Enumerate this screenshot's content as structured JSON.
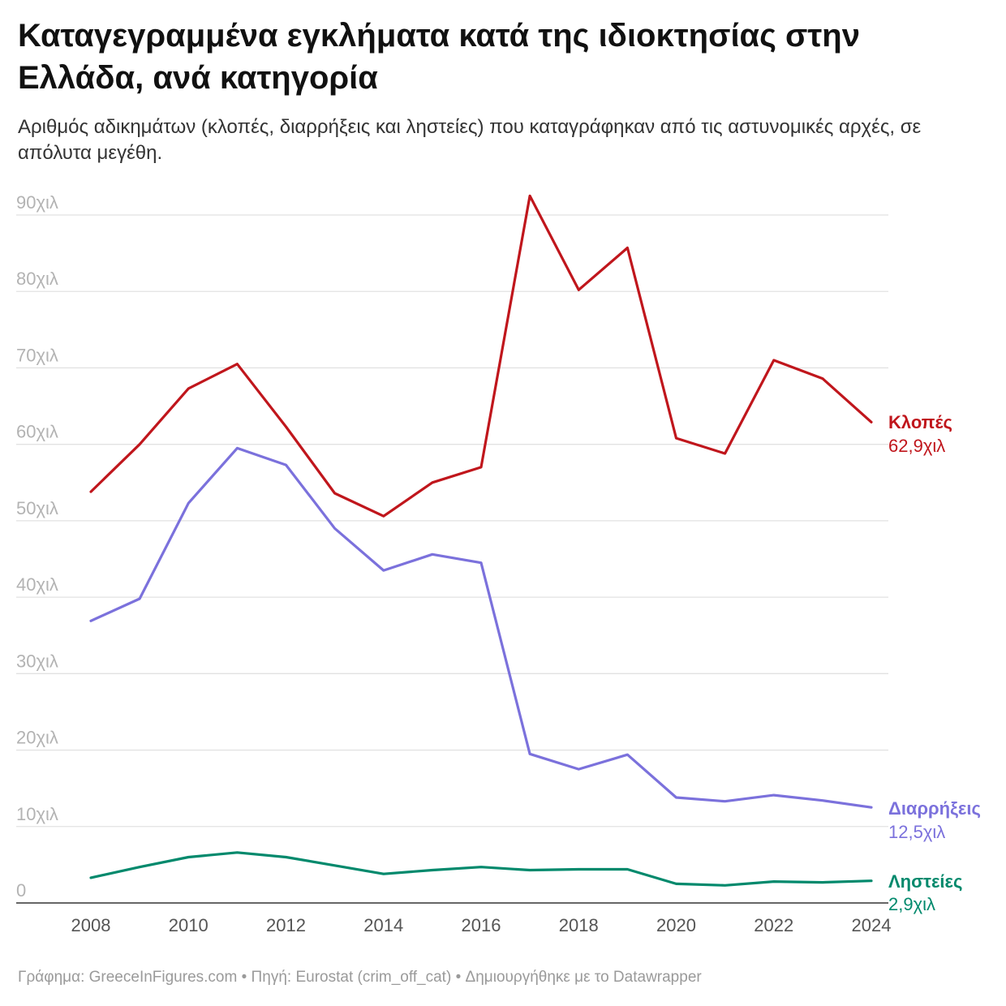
{
  "chart_data": {
    "type": "line",
    "title": "Καταγεγραμμένα εγκλήματα κατά της ιδιοκτησίας στην Ελλάδα, ανά κατηγορία",
    "subtitle": "Αριθμός αδικημάτων (κλοπές, διαρρήξεις και ληστείες) που καταγράφηκαν από τις αστυνομικές αρχές, σε απόλυτα μεγέθη.",
    "x": [
      2008,
      2009,
      2010,
      2011,
      2012,
      2013,
      2014,
      2015,
      2016,
      2017,
      2018,
      2019,
      2020,
      2021,
      2022,
      2023,
      2024
    ],
    "x_ticks": [
      "2008",
      "2010",
      "2012",
      "2014",
      "2016",
      "2018",
      "2020",
      "2022",
      "2024"
    ],
    "y_ticks": [
      "0",
      "10χιλ",
      "20χιλ",
      "30χιλ",
      "40χιλ",
      "50χιλ",
      "60χιλ",
      "70χιλ",
      "80χιλ",
      "90χιλ"
    ],
    "ylim": [
      0,
      90000
    ],
    "grid": true,
    "series": [
      {
        "name": "Κλοπές",
        "end_label": "62,9χιλ",
        "color": "#c0161c",
        "values": [
          53800,
          60000,
          67300,
          70500,
          62300,
          53600,
          50600,
          55000,
          57000,
          92500,
          80200,
          85700,
          60800,
          58800,
          71000,
          68600,
          62900
        ]
      },
      {
        "name": "Διαρρήξεις",
        "end_label": "12,5χιλ",
        "color": "#7b71dc",
        "values": [
          36900,
          39800,
          52300,
          59500,
          57300,
          49000,
          43500,
          45600,
          44500,
          19500,
          17500,
          19400,
          13800,
          13300,
          14100,
          13400,
          12500
        ]
      },
      {
        "name": "Ληστείες",
        "end_label": "2,9χιλ",
        "color": "#00896c",
        "values": [
          3300,
          4700,
          6000,
          6600,
          6000,
          4900,
          3800,
          4300,
          4700,
          4300,
          4400,
          4400,
          2500,
          2300,
          2800,
          2700,
          2900
        ]
      }
    ]
  },
  "footer": {
    "credit": "Γράφημα: GreeceInFigures.com",
    "separator": " • ",
    "source": "Πηγή: Eurostat (crim_off_cat)",
    "tool": "Δημιουργήθηκε με το Datawrapper"
  }
}
